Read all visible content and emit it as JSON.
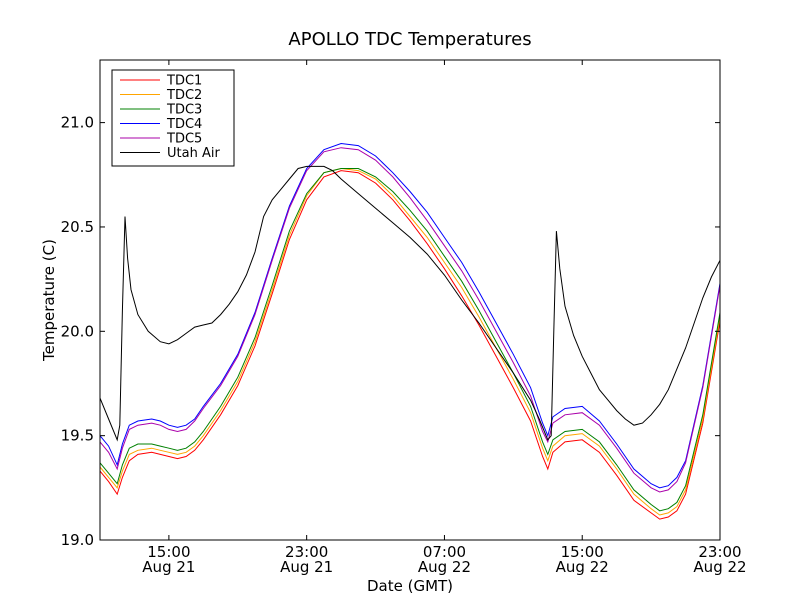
{
  "chart_data": {
    "type": "line",
    "title": "APOLLO TDC Temperatures",
    "xlabel": "Date (GMT)",
    "ylabel": "Temperature (C)",
    "x_unit": "hours since Aug 21 11:00 GMT",
    "xlim": [
      0,
      36
    ],
    "ylim": [
      19.0,
      21.3
    ],
    "yticks": [
      {
        "value": 19.0,
        "label": "19.0"
      },
      {
        "value": 19.5,
        "label": "19.5"
      },
      {
        "value": 20.0,
        "label": "20.0"
      },
      {
        "value": 20.5,
        "label": "20.5"
      },
      {
        "value": 21.0,
        "label": "21.0"
      }
    ],
    "xticks": [
      {
        "value": 4,
        "time": "15:00",
        "date": "Aug 21"
      },
      {
        "value": 12,
        "time": "23:00",
        "date": "Aug 21"
      },
      {
        "value": 20,
        "time": "07:00",
        "date": "Aug 22"
      },
      {
        "value": 28,
        "time": "15:00",
        "date": "Aug 22"
      },
      {
        "value": 36,
        "time": "23:00",
        "date": "Aug 22"
      }
    ],
    "legend_position": "top-left",
    "grid": false,
    "series": [
      {
        "name": "TDC1",
        "color": "#ff0000",
        "points": [
          [
            0,
            19.33
          ],
          [
            0.5,
            19.28
          ],
          [
            1,
            19.22
          ],
          [
            1.3,
            19.3
          ],
          [
            1.7,
            19.38
          ],
          [
            2.2,
            19.41
          ],
          [
            3,
            19.42
          ],
          [
            3.5,
            19.41
          ],
          [
            4,
            19.4
          ],
          [
            4.5,
            19.39
          ],
          [
            5,
            19.4
          ],
          [
            5.5,
            19.43
          ],
          [
            6,
            19.48
          ],
          [
            7,
            19.6
          ],
          [
            8,
            19.74
          ],
          [
            9,
            19.93
          ],
          [
            10,
            20.18
          ],
          [
            11,
            20.44
          ],
          [
            12,
            20.63
          ],
          [
            13,
            20.74
          ],
          [
            14,
            20.77
          ],
          [
            15,
            20.76
          ],
          [
            16,
            20.71
          ],
          [
            17,
            20.63
          ],
          [
            18,
            20.53
          ],
          [
            19,
            20.42
          ],
          [
            20,
            20.3
          ],
          [
            21,
            20.17
          ],
          [
            22,
            20.03
          ],
          [
            23,
            19.88
          ],
          [
            24,
            19.73
          ],
          [
            25,
            19.57
          ],
          [
            25.7,
            19.4
          ],
          [
            26,
            19.34
          ],
          [
            26.3,
            19.42
          ],
          [
            27,
            19.47
          ],
          [
            28,
            19.48
          ],
          [
            29,
            19.42
          ],
          [
            30,
            19.31
          ],
          [
            31,
            19.19
          ],
          [
            32,
            19.13
          ],
          [
            32.5,
            19.1
          ],
          [
            33,
            19.11
          ],
          [
            33.5,
            19.14
          ],
          [
            34,
            19.22
          ],
          [
            35,
            19.56
          ],
          [
            36,
            20.05
          ]
        ]
      },
      {
        "name": "TDC2",
        "color": "#ffa500",
        "points": [
          [
            0,
            19.35
          ],
          [
            0.5,
            19.3
          ],
          [
            1,
            19.25
          ],
          [
            1.3,
            19.33
          ],
          [
            1.7,
            19.41
          ],
          [
            2.2,
            19.43
          ],
          [
            3,
            19.44
          ],
          [
            3.5,
            19.43
          ],
          [
            4,
            19.42
          ],
          [
            4.5,
            19.41
          ],
          [
            5,
            19.42
          ],
          [
            5.5,
            19.45
          ],
          [
            6,
            19.5
          ],
          [
            7,
            19.62
          ],
          [
            8,
            19.76
          ],
          [
            9,
            19.95
          ],
          [
            10,
            20.2
          ],
          [
            11,
            20.46
          ],
          [
            12,
            20.65
          ],
          [
            13,
            20.76
          ],
          [
            14,
            20.78
          ],
          [
            15,
            20.77
          ],
          [
            16,
            20.73
          ],
          [
            17,
            20.65
          ],
          [
            18,
            20.55
          ],
          [
            19,
            20.45
          ],
          [
            20,
            20.33
          ],
          [
            21,
            20.21
          ],
          [
            22,
            20.07
          ],
          [
            23,
            19.92
          ],
          [
            24,
            19.77
          ],
          [
            25,
            19.61
          ],
          [
            25.7,
            19.44
          ],
          [
            26,
            19.38
          ],
          [
            26.3,
            19.45
          ],
          [
            27,
            19.5
          ],
          [
            28,
            19.51
          ],
          [
            29,
            19.45
          ],
          [
            30,
            19.34
          ],
          [
            31,
            19.22
          ],
          [
            32,
            19.15
          ],
          [
            32.5,
            19.12
          ],
          [
            33,
            19.13
          ],
          [
            33.5,
            19.16
          ],
          [
            34,
            19.24
          ],
          [
            35,
            19.58
          ],
          [
            36,
            20.07
          ]
        ]
      },
      {
        "name": "TDC3",
        "color": "#008000",
        "points": [
          [
            0,
            19.37
          ],
          [
            0.5,
            19.32
          ],
          [
            1,
            19.27
          ],
          [
            1.3,
            19.36
          ],
          [
            1.7,
            19.44
          ],
          [
            2.2,
            19.46
          ],
          [
            3,
            19.46
          ],
          [
            3.5,
            19.45
          ],
          [
            4,
            19.44
          ],
          [
            4.5,
            19.43
          ],
          [
            5,
            19.44
          ],
          [
            5.5,
            19.47
          ],
          [
            6,
            19.52
          ],
          [
            7,
            19.64
          ],
          [
            8,
            19.78
          ],
          [
            9,
            19.97
          ],
          [
            10,
            20.22
          ],
          [
            11,
            20.48
          ],
          [
            12,
            20.66
          ],
          [
            13,
            20.76
          ],
          [
            14,
            20.78
          ],
          [
            15,
            20.78
          ],
          [
            16,
            20.74
          ],
          [
            17,
            20.67
          ],
          [
            18,
            20.58
          ],
          [
            19,
            20.48
          ],
          [
            20,
            20.36
          ],
          [
            21,
            20.24
          ],
          [
            22,
            20.1
          ],
          [
            23,
            19.95
          ],
          [
            24,
            19.8
          ],
          [
            25,
            19.64
          ],
          [
            25.7,
            19.47
          ],
          [
            26,
            19.41
          ],
          [
            26.3,
            19.48
          ],
          [
            27,
            19.52
          ],
          [
            28,
            19.53
          ],
          [
            29,
            19.47
          ],
          [
            30,
            19.36
          ],
          [
            31,
            19.24
          ],
          [
            32,
            19.17
          ],
          [
            32.5,
            19.14
          ],
          [
            33,
            19.15
          ],
          [
            33.5,
            19.18
          ],
          [
            34,
            19.26
          ],
          [
            35,
            19.6
          ],
          [
            36,
            20.09
          ]
        ]
      },
      {
        "name": "TDC4",
        "color": "#0000ff",
        "points": [
          [
            0,
            19.5
          ],
          [
            0.5,
            19.45
          ],
          [
            1,
            19.36
          ],
          [
            1.3,
            19.46
          ],
          [
            1.7,
            19.55
          ],
          [
            2.2,
            19.57
          ],
          [
            3,
            19.58
          ],
          [
            3.5,
            19.57
          ],
          [
            4,
            19.55
          ],
          [
            4.5,
            19.54
          ],
          [
            5,
            19.55
          ],
          [
            5.5,
            19.58
          ],
          [
            6,
            19.64
          ],
          [
            7,
            19.75
          ],
          [
            8,
            19.89
          ],
          [
            9,
            20.09
          ],
          [
            10,
            20.35
          ],
          [
            11,
            20.6
          ],
          [
            12,
            20.78
          ],
          [
            13,
            20.87
          ],
          [
            14,
            20.9
          ],
          [
            15,
            20.89
          ],
          [
            16,
            20.84
          ],
          [
            17,
            20.76
          ],
          [
            18,
            20.67
          ],
          [
            19,
            20.57
          ],
          [
            20,
            20.45
          ],
          [
            21,
            20.33
          ],
          [
            22,
            20.19
          ],
          [
            23,
            20.04
          ],
          [
            24,
            19.89
          ],
          [
            25,
            19.73
          ],
          [
            25.7,
            19.56
          ],
          [
            26,
            19.5
          ],
          [
            26.3,
            19.59
          ],
          [
            27,
            19.63
          ],
          [
            28,
            19.64
          ],
          [
            29,
            19.57
          ],
          [
            30,
            19.46
          ],
          [
            31,
            19.34
          ],
          [
            32,
            19.27
          ],
          [
            32.5,
            19.25
          ],
          [
            33,
            19.26
          ],
          [
            33.5,
            19.3
          ],
          [
            34,
            19.38
          ],
          [
            35,
            19.74
          ],
          [
            36,
            20.23
          ]
        ]
      },
      {
        "name": "TDC5",
        "color": "#aa00aa",
        "points": [
          [
            0,
            19.47
          ],
          [
            0.5,
            19.42
          ],
          [
            1,
            19.34
          ],
          [
            1.3,
            19.44
          ],
          [
            1.7,
            19.53
          ],
          [
            2.2,
            19.55
          ],
          [
            3,
            19.56
          ],
          [
            3.5,
            19.55
          ],
          [
            4,
            19.53
          ],
          [
            4.5,
            19.52
          ],
          [
            5,
            19.53
          ],
          [
            5.5,
            19.57
          ],
          [
            6,
            19.63
          ],
          [
            7,
            19.74
          ],
          [
            8,
            19.88
          ],
          [
            9,
            20.08
          ],
          [
            10,
            20.34
          ],
          [
            11,
            20.59
          ],
          [
            12,
            20.77
          ],
          [
            13,
            20.86
          ],
          [
            14,
            20.88
          ],
          [
            15,
            20.87
          ],
          [
            16,
            20.82
          ],
          [
            17,
            20.74
          ],
          [
            18,
            20.64
          ],
          [
            19,
            20.53
          ],
          [
            20,
            20.41
          ],
          [
            21,
            20.29
          ],
          [
            22,
            20.15
          ],
          [
            23,
            20.0
          ],
          [
            24,
            19.85
          ],
          [
            25,
            19.69
          ],
          [
            25.7,
            19.52
          ],
          [
            26,
            19.47
          ],
          [
            26.3,
            19.56
          ],
          [
            27,
            19.6
          ],
          [
            28,
            19.61
          ],
          [
            29,
            19.55
          ],
          [
            30,
            19.44
          ],
          [
            31,
            19.32
          ],
          [
            32,
            19.25
          ],
          [
            32.5,
            19.23
          ],
          [
            33,
            19.24
          ],
          [
            33.5,
            19.28
          ],
          [
            34,
            19.37
          ],
          [
            35,
            19.73
          ],
          [
            36,
            20.22
          ]
        ]
      },
      {
        "name": "Utah Air",
        "color": "#000000",
        "points": [
          [
            0,
            19.68
          ],
          [
            0.5,
            19.58
          ],
          [
            1,
            19.48
          ],
          [
            1.15,
            19.55
          ],
          [
            1.3,
            20.1
          ],
          [
            1.45,
            20.55
          ],
          [
            1.6,
            20.35
          ],
          [
            1.8,
            20.2
          ],
          [
            2.2,
            20.08
          ],
          [
            2.8,
            20.0
          ],
          [
            3.5,
            19.95
          ],
          [
            4,
            19.94
          ],
          [
            4.5,
            19.96
          ],
          [
            5,
            19.99
          ],
          [
            5.5,
            20.02
          ],
          [
            6,
            20.03
          ],
          [
            6.5,
            20.04
          ],
          [
            7,
            20.08
          ],
          [
            7.5,
            20.13
          ],
          [
            8,
            20.19
          ],
          [
            8.5,
            20.27
          ],
          [
            9,
            20.38
          ],
          [
            9.5,
            20.55
          ],
          [
            10,
            20.63
          ],
          [
            10.5,
            20.68
          ],
          [
            11,
            20.73
          ],
          [
            11.5,
            20.78
          ],
          [
            12,
            20.79
          ],
          [
            12.5,
            20.79
          ],
          [
            13,
            20.79
          ],
          [
            13.5,
            20.77
          ],
          [
            14,
            20.73
          ],
          [
            15,
            20.66
          ],
          [
            16,
            20.59
          ],
          [
            17,
            20.52
          ],
          [
            18,
            20.45
          ],
          [
            19,
            20.37
          ],
          [
            20,
            20.27
          ],
          [
            21,
            20.15
          ],
          [
            22,
            20.04
          ],
          [
            23,
            19.92
          ],
          [
            24,
            19.8
          ],
          [
            25,
            19.67
          ],
          [
            25.5,
            19.58
          ],
          [
            26,
            19.48
          ],
          [
            26.2,
            19.5
          ],
          [
            26.35,
            20.0
          ],
          [
            26.5,
            20.48
          ],
          [
            26.7,
            20.3
          ],
          [
            27,
            20.12
          ],
          [
            27.5,
            19.98
          ],
          [
            28,
            19.88
          ],
          [
            28.5,
            19.8
          ],
          [
            29,
            19.72
          ],
          [
            29.5,
            19.67
          ],
          [
            30,
            19.62
          ],
          [
            30.5,
            19.58
          ],
          [
            31,
            19.55
          ],
          [
            31.5,
            19.56
          ],
          [
            32,
            19.6
          ],
          [
            32.5,
            19.65
          ],
          [
            33,
            19.72
          ],
          [
            33.5,
            19.82
          ],
          [
            34,
            19.92
          ],
          [
            34.5,
            20.04
          ],
          [
            35,
            20.16
          ],
          [
            35.5,
            20.26
          ],
          [
            36,
            20.34
          ]
        ]
      }
    ]
  }
}
